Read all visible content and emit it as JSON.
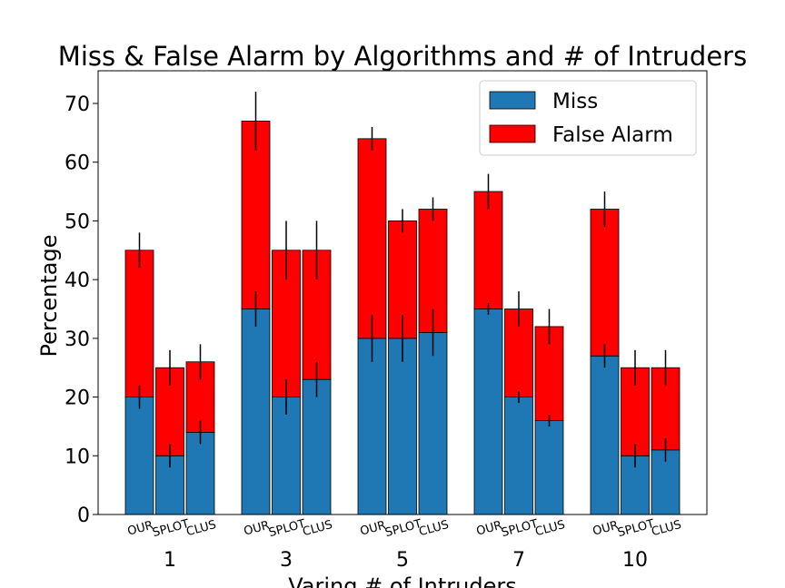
{
  "chart_data": {
    "type": "bar",
    "title": "Miss & False Alarm by Algorithms and # of Intruders",
    "xlabel": "Varing # of Intruders",
    "ylabel": "Percentage",
    "ylim": [
      0,
      75
    ],
    "yticks": [
      0,
      10,
      20,
      30,
      40,
      50,
      60,
      70
    ],
    "stacked": true,
    "groups": [
      "1",
      "3",
      "5",
      "7",
      "10"
    ],
    "algorithms": [
      "OUR",
      "SPLOT",
      "CLUS"
    ],
    "legend_position": "top-right",
    "grid": false,
    "series": [
      {
        "name": "Miss",
        "color": "#1f77b4",
        "values": [
          [
            20,
            10,
            14
          ],
          [
            35,
            20,
            23
          ],
          [
            30,
            30,
            31
          ],
          [
            35,
            20,
            16
          ],
          [
            27,
            10,
            11
          ]
        ],
        "error": [
          [
            2,
            2,
            2
          ],
          [
            3,
            3,
            3
          ],
          [
            4,
            4,
            4
          ],
          [
            1,
            1,
            1
          ],
          [
            2,
            2,
            2
          ]
        ]
      },
      {
        "name": "False Alarm",
        "color": "#ff0000",
        "values": [
          [
            25,
            15,
            12
          ],
          [
            32,
            25,
            22
          ],
          [
            34,
            20,
            21
          ],
          [
            20,
            15,
            16
          ],
          [
            25,
            15,
            14
          ]
        ],
        "error": [
          [
            3,
            3,
            3
          ],
          [
            5,
            5,
            5
          ],
          [
            2,
            2,
            2
          ],
          [
            3,
            3,
            3
          ],
          [
            3,
            3,
            3
          ]
        ]
      }
    ]
  }
}
